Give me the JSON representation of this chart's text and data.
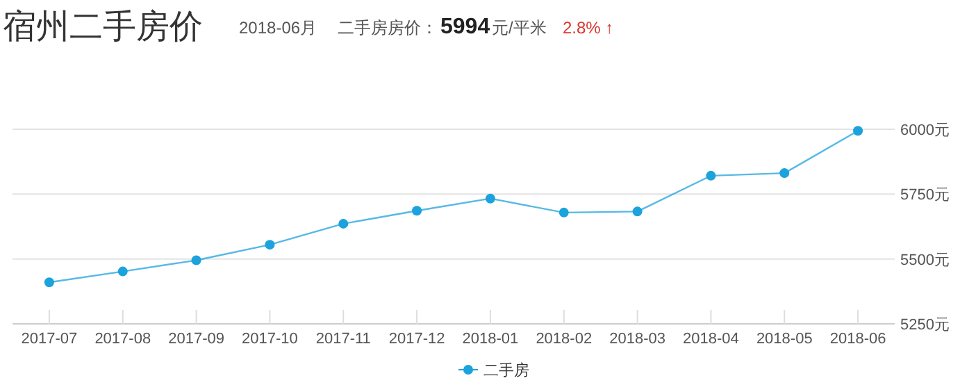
{
  "chart_data": {
    "type": "line",
    "title": "宿州二手房价",
    "subtitle": "2018-06月",
    "annotations": [
      "二手房房价：",
      "5994",
      "元/平米",
      "2.8% ↑"
    ],
    "categories": [
      "2017-07",
      "2017-08",
      "2017-09",
      "2017-10",
      "2017-11",
      "2017-12",
      "2018-01",
      "2018-02",
      "2018-03",
      "2018-04",
      "2018-05",
      "2018-06"
    ],
    "series": [
      {
        "name": "二手房",
        "color": "#1ca2dc",
        "values": [
          5410,
          5452,
          5495,
          5555,
          5636,
          5686,
          5733,
          5679,
          5683,
          5821,
          5831,
          5994
        ]
      }
    ],
    "ylim": [
      5250,
      6000
    ],
    "yticks": [
      {
        "value": 5250,
        "label": "5250元"
      },
      {
        "value": 5500,
        "label": "5500元"
      },
      {
        "value": 5750,
        "label": "5750元"
      },
      {
        "value": 6000,
        "label": "6000元"
      }
    ],
    "grid": "y",
    "legend": "bottom",
    "marker": "circle",
    "line_style": "solid"
  }
}
